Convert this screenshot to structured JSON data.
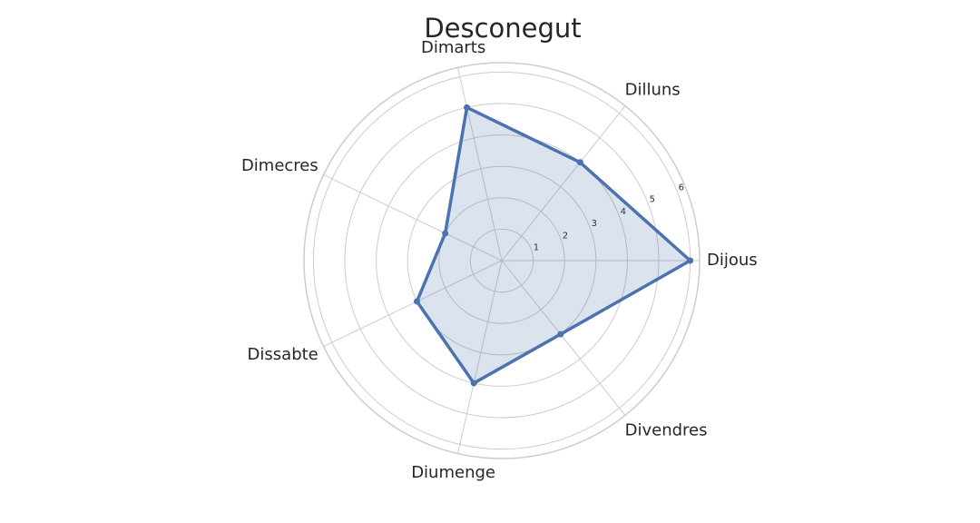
{
  "chart_data": {
    "type": "radar",
    "title": "Desconegut",
    "categories": [
      "Dijous",
      "Dilluns",
      "Dimarts",
      "Dimecres",
      "Dissabte",
      "Diumenge",
      "Divendres"
    ],
    "series": [
      {
        "values": [
          6.0,
          4.0,
          5.0,
          2.0,
          3.0,
          4.0,
          3.0
        ],
        "color": "#4c72b0",
        "fill_color": "#4c72b0"
      }
    ],
    "rlim": [
      0,
      6.3
    ],
    "rticks": [
      1,
      2,
      3,
      4,
      5,
      6
    ],
    "grid": true,
    "legend": "none"
  }
}
